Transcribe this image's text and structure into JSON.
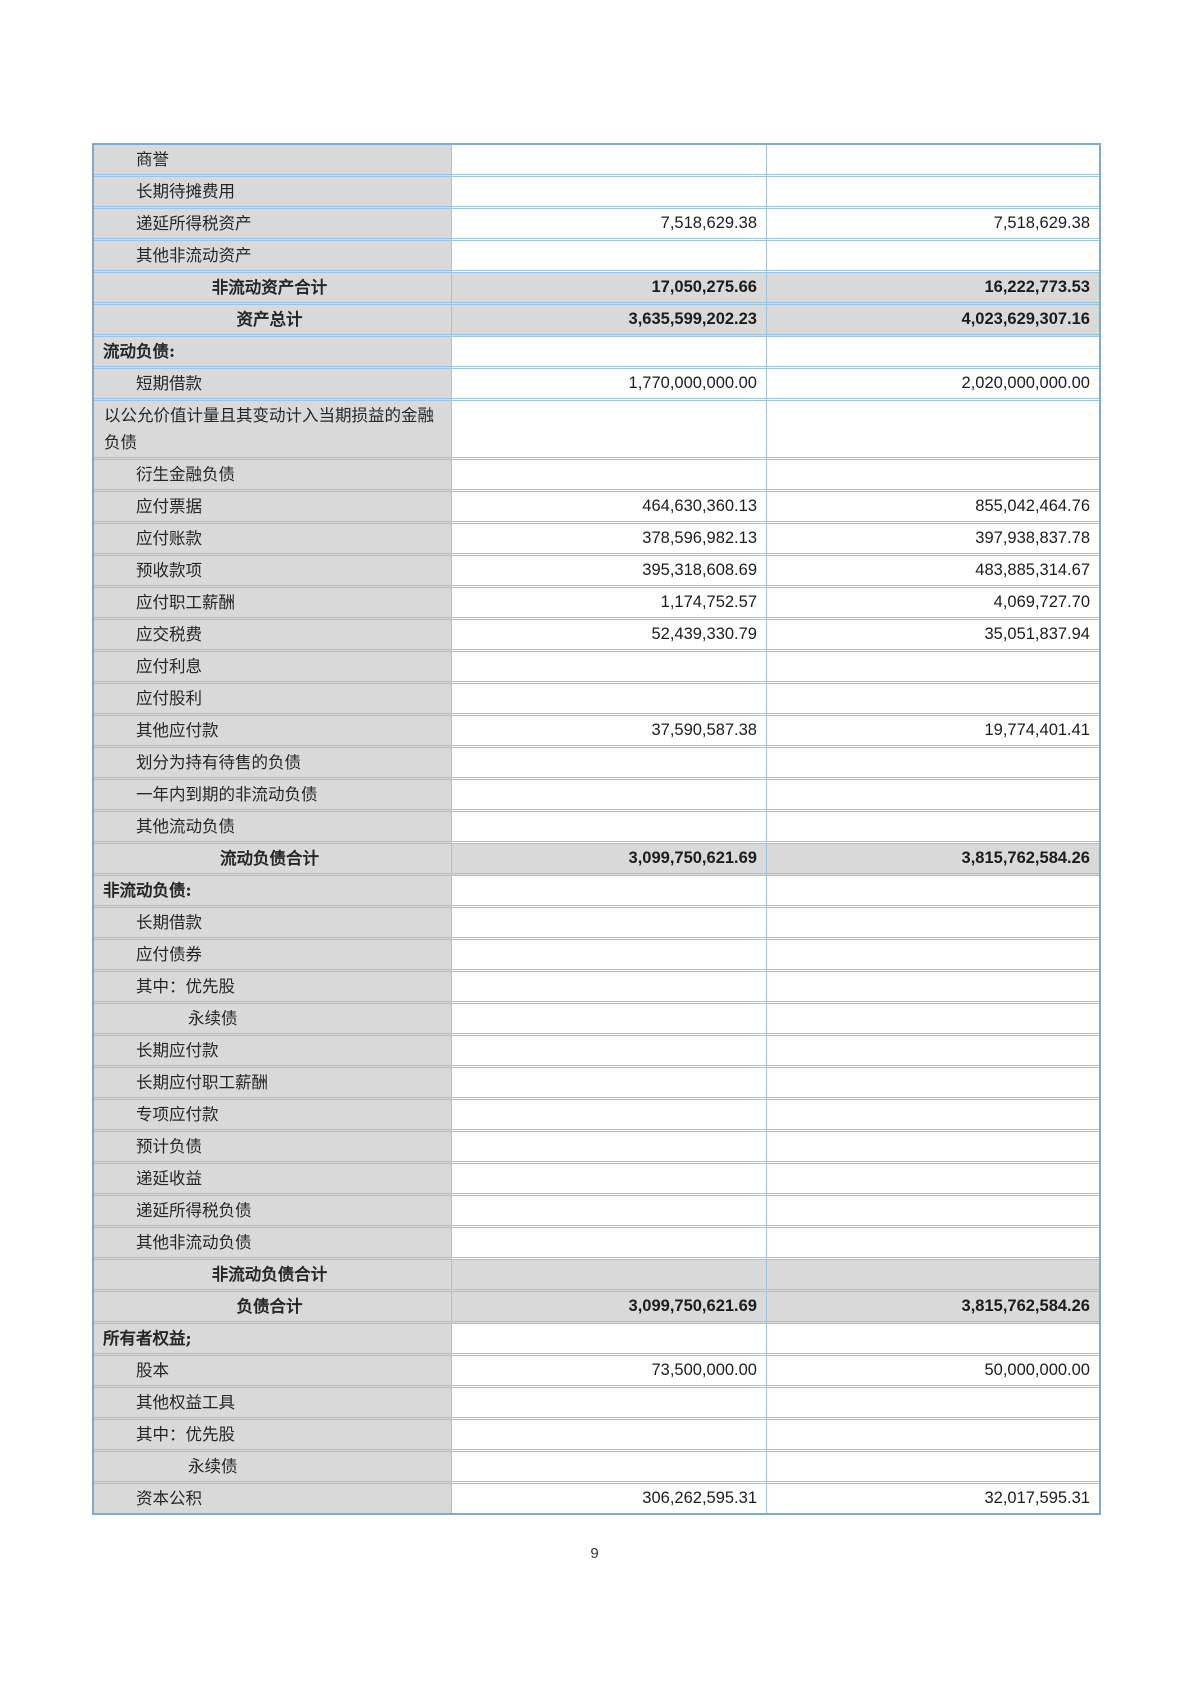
{
  "page": {
    "number": "9"
  },
  "colors": {
    "grid_line": "#9cc2e4",
    "outer_border": "#7ea9d2",
    "label_fill": "#d9d9d9",
    "total_row_fill": "#d9d9d9",
    "text": "#262626"
  },
  "table": {
    "rows": [
      {
        "style": "item",
        "label": "商誉",
        "current": "",
        "prior": ""
      },
      {
        "style": "item",
        "label": "长期待摊费用",
        "current": "",
        "prior": ""
      },
      {
        "style": "item",
        "label": "递延所得税资产",
        "current": "7,518,629.38",
        "prior": "7,518,629.38"
      },
      {
        "style": "item",
        "label": "其他非流动资产",
        "current": "",
        "prior": ""
      },
      {
        "style": "total",
        "label": "非流动资产合计",
        "current": "17,050,275.66",
        "prior": "16,222,773.53"
      },
      {
        "style": "total",
        "label": "资产总计",
        "current": "3,635,599,202.23",
        "prior": "4,023,629,307.16"
      },
      {
        "style": "section",
        "label": "流动负债:",
        "current": "",
        "prior": ""
      },
      {
        "style": "item",
        "label": "短期借款",
        "current": "1,770,000,000.00",
        "prior": "2,020,000,000.00"
      },
      {
        "style": "wrap",
        "label": "以公允价值计量且其变动计入当期损益的金融负债",
        "current": "",
        "prior": ""
      },
      {
        "style": "item",
        "label": "衍生金融负债",
        "current": "",
        "prior": ""
      },
      {
        "style": "item",
        "label": "应付票据",
        "current": "464,630,360.13",
        "prior": "855,042,464.76"
      },
      {
        "style": "item",
        "label": "应付账款",
        "current": "378,596,982.13",
        "prior": "397,938,837.78"
      },
      {
        "style": "item",
        "label": "预收款项",
        "current": "395,318,608.69",
        "prior": "483,885,314.67"
      },
      {
        "style": "item",
        "label": "应付职工薪酬",
        "current": "1,174,752.57",
        "prior": "4,069,727.70"
      },
      {
        "style": "item",
        "label": "应交税费",
        "current": "52,439,330.79",
        "prior": "35,051,837.94"
      },
      {
        "style": "item",
        "label": "应付利息",
        "current": "",
        "prior": ""
      },
      {
        "style": "item",
        "label": "应付股利",
        "current": "",
        "prior": ""
      },
      {
        "style": "item",
        "label": "其他应付款",
        "current": "37,590,587.38",
        "prior": "19,774,401.41"
      },
      {
        "style": "item",
        "label": "划分为持有待售的负债",
        "current": "",
        "prior": ""
      },
      {
        "style": "item",
        "label": "一年内到期的非流动负债",
        "current": "",
        "prior": ""
      },
      {
        "style": "item",
        "label": "其他流动负债",
        "current": "",
        "prior": ""
      },
      {
        "style": "total",
        "label": "流动负债合计",
        "current": "3,099,750,621.69",
        "prior": "3,815,762,584.26"
      },
      {
        "style": "section",
        "label": "非流动负债:",
        "current": "",
        "prior": ""
      },
      {
        "style": "item",
        "label": "长期借款",
        "current": "",
        "prior": ""
      },
      {
        "style": "item",
        "label": "应付债券",
        "current": "",
        "prior": ""
      },
      {
        "style": "item",
        "label": "其中：优先股",
        "current": "",
        "prior": ""
      },
      {
        "style": "subitem",
        "label": "永续债",
        "current": "",
        "prior": ""
      },
      {
        "style": "item",
        "label": "长期应付款",
        "current": "",
        "prior": ""
      },
      {
        "style": "item",
        "label": "长期应付职工薪酬",
        "current": "",
        "prior": ""
      },
      {
        "style": "item",
        "label": "专项应付款",
        "current": "",
        "prior": ""
      },
      {
        "style": "item",
        "label": "预计负债",
        "current": "",
        "prior": ""
      },
      {
        "style": "item",
        "label": "递延收益",
        "current": "",
        "prior": ""
      },
      {
        "style": "item",
        "label": "递延所得税负债",
        "current": "",
        "prior": ""
      },
      {
        "style": "item",
        "label": "其他非流动负债",
        "current": "",
        "prior": ""
      },
      {
        "style": "total",
        "label": "非流动负债合计",
        "current": "",
        "prior": ""
      },
      {
        "style": "total",
        "label": "负债合计",
        "current": "3,099,750,621.69",
        "prior": "3,815,762,584.26"
      },
      {
        "style": "section",
        "label": "所有者权益;",
        "current": "",
        "prior": ""
      },
      {
        "style": "item",
        "label": "股本",
        "current": "73,500,000.00",
        "prior": "50,000,000.00"
      },
      {
        "style": "item",
        "label": "其他权益工具",
        "current": "",
        "prior": ""
      },
      {
        "style": "item",
        "label": "其中：优先股",
        "current": "",
        "prior": ""
      },
      {
        "style": "subitem",
        "label": "永续债",
        "current": "",
        "prior": ""
      },
      {
        "style": "item",
        "label": "资本公积",
        "current": "306,262,595.31",
        "prior": "32,017,595.31"
      }
    ]
  }
}
